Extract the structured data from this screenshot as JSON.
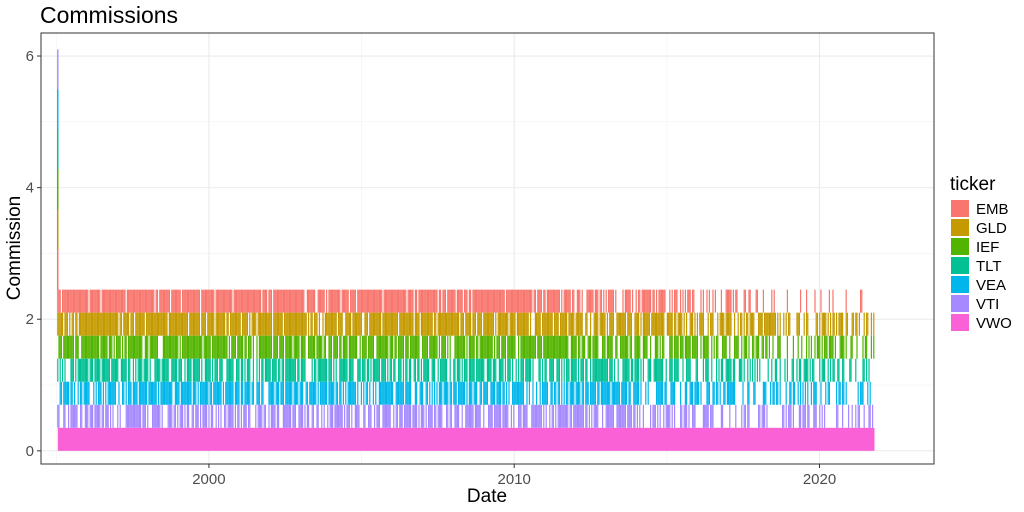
{
  "chart_data": {
    "type": "area",
    "stacked": true,
    "title": "Commissions",
    "xlabel": "Date",
    "ylabel": "Commission",
    "xlim": [
      1994.5,
      2023.75
    ],
    "ylim": [
      -0.2,
      6.35
    ],
    "x_ticks": [
      2000,
      2010,
      2020
    ],
    "x_tick_labels": [
      "2000",
      "2010",
      "2020"
    ],
    "y_ticks": [
      0,
      2,
      4,
      6
    ],
    "y_tick_labels": [
      "0",
      "2",
      "4",
      "6"
    ],
    "grid": true,
    "legend": {
      "title": "ticker",
      "position": "right"
    },
    "x_range": [
      1995.05,
      2021.8
    ],
    "per_ticker_commission_band": 0.35,
    "spike_at_start": {
      "x": 1995.05,
      "top": 6.1
    },
    "series": [
      {
        "name": "EMB",
        "color": "#F8766D",
        "start_level": 2.45,
        "end_level": 2.45,
        "step_change": 1
      },
      {
        "name": "GLD",
        "color": "#C49A00",
        "start_level": 2.1,
        "end_level": 1.75
      },
      {
        "name": "IEF",
        "color": "#53B400",
        "start_level": 1.75,
        "end_level": 1.4
      },
      {
        "name": "TLT",
        "color": "#00C094",
        "start_level": 1.4,
        "end_level": 1.05
      },
      {
        "name": "VEA",
        "color": "#00B6EB",
        "start_level": 1.05,
        "end_level": 0.7
      },
      {
        "name": "VTI",
        "color": "#A58AFF",
        "start_level": 0.7,
        "end_level": 0.35
      },
      {
        "name": "VWO",
        "color": "#FB61D7",
        "start_level": 0.35,
        "end_level": 0.35
      }
    ]
  }
}
